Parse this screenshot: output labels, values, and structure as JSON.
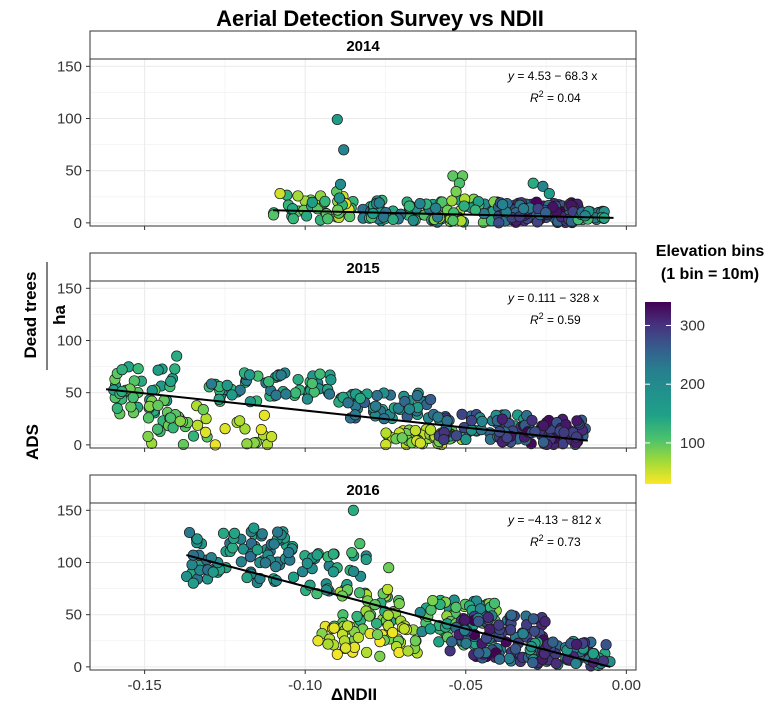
{
  "chart_data": {
    "type": "scatter",
    "title": "Aerial Detection Survey vs NDII",
    "xlabel": "ΔNDII",
    "ylabel_main": "ADS",
    "ylabel_fraction_numerator": "Dead trees",
    "ylabel_fraction_denominator": "ha",
    "xlim": [
      -0.167,
      0.003
    ],
    "ylim": [
      -3,
      157
    ],
    "x_ticks": [
      -0.15,
      -0.1,
      -0.05,
      0.0
    ],
    "x_tick_labels": [
      "-0.15",
      "-0.10",
      "-0.05",
      "0.00"
    ],
    "y_ticks": [
      0,
      50,
      100,
      150
    ],
    "y_tick_labels": [
      "0",
      "50",
      "100",
      "150"
    ],
    "grid": true,
    "legend": {
      "title_line1": "Elevation bins",
      "title_line2": "(1 bin = 10m)",
      "placement": "right",
      "min": 30,
      "max": 340,
      "ticks": [
        100,
        200,
        300
      ],
      "tick_labels": [
        "100",
        "200",
        "300"
      ],
      "colormap": "viridis"
    },
    "panels": [
      {
        "label": "2014",
        "fit": {
          "intercept": 4.53,
          "slope": -68.3,
          "x_range": [
            -0.11,
            -0.004
          ]
        },
        "equation": {
          "lhs": "y",
          "rhs": "= 4.53 − 68.3 x"
        },
        "r2": {
          "symbol": "R",
          "exponent": "2",
          "value": "= 0.04"
        },
        "clusters": [
          {
            "x": [
              -0.11,
              -0.085
            ],
            "y": [
              0,
              30
            ],
            "e": [
              40,
              180
            ],
            "n": 45
          },
          {
            "x": [
              -0.085,
              -0.06
            ],
            "y": [
              2,
              22
            ],
            "e": [
              110,
              230
            ],
            "n": 45
          },
          {
            "x": [
              -0.06,
              -0.04
            ],
            "y": [
              0,
              25
            ],
            "e": [
              60,
              220
            ],
            "n": 50
          },
          {
            "x": [
              -0.04,
              -0.015
            ],
            "y": [
              0,
              20
            ],
            "e": [
              200,
              340
            ],
            "n": 110
          },
          {
            "x": [
              -0.015,
              -0.004
            ],
            "y": [
              3,
              12
            ],
            "e": [
              120,
              240
            ],
            "n": 20
          }
        ],
        "points": [
          {
            "x": -0.09,
            "y": 99,
            "e": 170
          },
          {
            "x": -0.088,
            "y": 70,
            "e": 200
          },
          {
            "x": -0.089,
            "y": 37,
            "e": 190
          },
          {
            "x": -0.054,
            "y": 45,
            "e": 110
          },
          {
            "x": -0.051,
            "y": 45,
            "e": 105
          },
          {
            "x": -0.052,
            "y": 38,
            "e": 120
          },
          {
            "x": -0.053,
            "y": 30,
            "e": 95
          },
          {
            "x": -0.029,
            "y": 38,
            "e": 150
          },
          {
            "x": -0.026,
            "y": 35,
            "e": 200
          },
          {
            "x": -0.024,
            "y": 28,
            "e": 170
          }
        ]
      },
      {
        "label": "2015",
        "fit": {
          "intercept": 0.111,
          "slope": -328,
          "x_range": [
            -0.162,
            -0.012
          ]
        },
        "equation": {
          "lhs": "y",
          "rhs": "= 0.111 − 328 x"
        },
        "r2": {
          "symbol": "R",
          "exponent": "2",
          "value": "= 0.59"
        },
        "clusters": [
          {
            "x": [
              -0.16,
              -0.14
            ],
            "y": [
              20,
              75
            ],
            "e": [
              90,
              180
            ],
            "n": 40
          },
          {
            "x": [
              -0.15,
              -0.13
            ],
            "y": [
              0,
              40
            ],
            "e": [
              60,
              140
            ],
            "n": 25
          },
          {
            "x": [
              -0.13,
              -0.09
            ],
            "y": [
              40,
              70
            ],
            "e": [
              120,
              220
            ],
            "n": 60
          },
          {
            "x": [
              -0.125,
              -0.11
            ],
            "y": [
              0,
              30
            ],
            "e": [
              30,
              90
            ],
            "n": 12
          },
          {
            "x": [
              -0.09,
              -0.06
            ],
            "y": [
              25,
              50
            ],
            "e": [
              150,
              250
            ],
            "n": 55
          },
          {
            "x": [
              -0.075,
              -0.05
            ],
            "y": [
              0,
              15
            ],
            "e": [
              40,
              110
            ],
            "n": 45
          },
          {
            "x": [
              -0.06,
              -0.03
            ],
            "y": [
              5,
              30
            ],
            "e": [
              160,
              300
            ],
            "n": 60
          },
          {
            "x": [
              -0.04,
              -0.012
            ],
            "y": [
              0,
              25
            ],
            "e": [
              230,
              340
            ],
            "n": 65
          }
        ],
        "points": [
          {
            "x": -0.14,
            "y": 85,
            "e": 150
          },
          {
            "x": -0.157,
            "y": 72,
            "e": 140
          },
          {
            "x": -0.152,
            "y": 73,
            "e": 130
          },
          {
            "x": -0.131,
            "y": 12,
            "e": 45
          },
          {
            "x": -0.128,
            "y": 0,
            "e": 40
          }
        ]
      },
      {
        "label": "2016",
        "fit": {
          "intercept": -4.13,
          "slope": -812,
          "x_range": [
            -0.137,
            -0.005
          ]
        },
        "equation": {
          "lhs": "y",
          "rhs": "= −4.13 − 812 x"
        },
        "r2": {
          "symbol": "R",
          "exponent": "2",
          "value": "= 0.73"
        },
        "clusters": [
          {
            "x": [
              -0.137,
              -0.1
            ],
            "y": [
              80,
              130
            ],
            "e": [
              150,
              230
            ],
            "n": 80
          },
          {
            "x": [
              -0.1,
              -0.08
            ],
            "y": [
              70,
              110
            ],
            "e": [
              120,
              200
            ],
            "n": 30
          },
          {
            "x": [
              -0.09,
              -0.07
            ],
            "y": [
              40,
              75
            ],
            "e": [
              60,
              150
            ],
            "n": 35
          },
          {
            "x": [
              -0.095,
              -0.065
            ],
            "y": [
              10,
              40
            ],
            "e": [
              30,
              100
            ],
            "n": 50
          },
          {
            "x": [
              -0.065,
              -0.04
            ],
            "y": [
              20,
              65
            ],
            "e": [
              80,
              200
            ],
            "n": 70
          },
          {
            "x": [
              -0.055,
              -0.025
            ],
            "y": [
              5,
              50
            ],
            "e": [
              200,
              340
            ],
            "n": 90
          },
          {
            "x": [
              -0.03,
              -0.005
            ],
            "y": [
              0,
              25
            ],
            "e": [
              150,
              320
            ],
            "n": 60
          }
        ],
        "points": [
          {
            "x": -0.085,
            "y": 150,
            "e": 150
          },
          {
            "x": -0.116,
            "y": 133,
            "e": 170
          },
          {
            "x": -0.122,
            "y": 128,
            "e": 160
          },
          {
            "x": -0.083,
            "y": 118,
            "e": 120
          },
          {
            "x": -0.074,
            "y": 95,
            "e": 100
          },
          {
            "x": -0.096,
            "y": 25,
            "e": 40
          },
          {
            "x": -0.09,
            "y": 12,
            "e": 35
          }
        ]
      }
    ]
  }
}
